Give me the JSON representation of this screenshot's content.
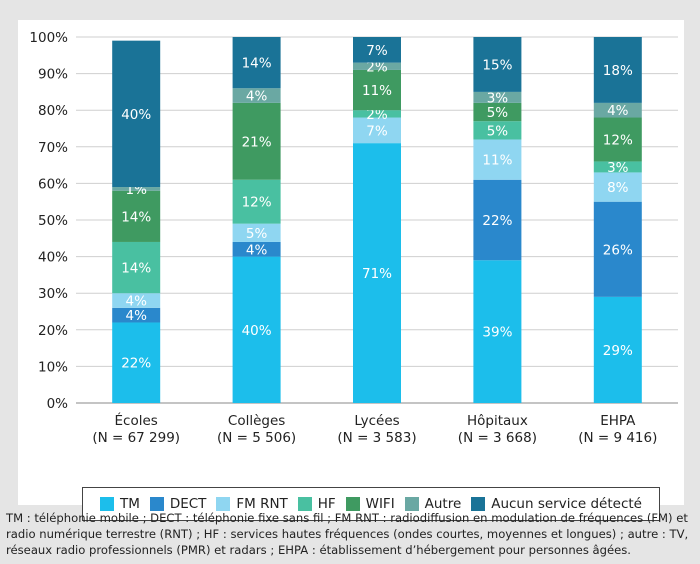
{
  "chart_data": {
    "type": "bar",
    "stacked": true,
    "categories": [
      "Écoles",
      "Collèges",
      "Lycées",
      "Hôpitaux",
      "EHPA"
    ],
    "category_counts": [
      "(N = 67 299)",
      "(N = 5 506)",
      "(N = 3 583)",
      "(N = 3 668)",
      "(N = 9 416)"
    ],
    "ylim": [
      0,
      100
    ],
    "yticks": [
      "0%",
      "10%",
      "20%",
      "30%",
      "40%",
      "50%",
      "60%",
      "70%",
      "80%",
      "90%",
      "100%"
    ],
    "grid": true,
    "legend_position": "bottom",
    "series": [
      {
        "name": "TM",
        "color": "#1cbeeb",
        "values": [
          22,
          40,
          71,
          39,
          29
        ],
        "labels": [
          "22%",
          "40%",
          "71%",
          "39%",
          "29%"
        ]
      },
      {
        "name": "DECT",
        "color": "#2a88cc",
        "values": [
          4,
          4,
          0,
          22,
          26
        ],
        "labels": [
          "4%",
          "4%",
          "",
          "22%",
          "26%"
        ]
      },
      {
        "name": "FM RNT",
        "color": "#8fd6f1",
        "values": [
          4,
          5,
          7,
          11,
          8
        ],
        "labels": [
          "4%",
          "5%",
          "7%",
          "11%",
          "8%"
        ]
      },
      {
        "name": "HF",
        "color": "#49c0a1",
        "values": [
          14,
          12,
          2,
          5,
          3
        ],
        "labels": [
          "14%",
          "12%",
          "2%",
          "5%",
          "3%"
        ]
      },
      {
        "name": "WIFI",
        "color": "#3f9a61",
        "values": [
          14,
          21,
          11,
          5,
          12
        ],
        "labels": [
          "14%",
          "21%",
          "11%",
          "5%",
          "12%"
        ]
      },
      {
        "name": "Autre",
        "color": "#6aa8a3",
        "values": [
          1,
          4,
          2,
          3,
          4
        ],
        "labels": [
          "1%",
          "4%",
          "2%",
          "3%",
          "4%"
        ]
      },
      {
        "name": "Aucun service détecté",
        "color": "#1a7397",
        "values": [
          40,
          14,
          7,
          15,
          18
        ],
        "labels": [
          "40%",
          "14%",
          "7%",
          "15%",
          "18%"
        ]
      }
    ]
  },
  "footnote": "TM : téléphonie mobile ; DECT : téléphonie fixe sans fil ; FM RNT : radiodiffusion en modulation de fréquences (FM) et radio numérique terrestre (RNT) ; HF : services hautes fréquences (ondes courtes, moyennes et longues) ; autre : TV, réseaux radio professionnels (PMR) et radars ; EHPA : établissement d’hébergement pour personnes âgées."
}
